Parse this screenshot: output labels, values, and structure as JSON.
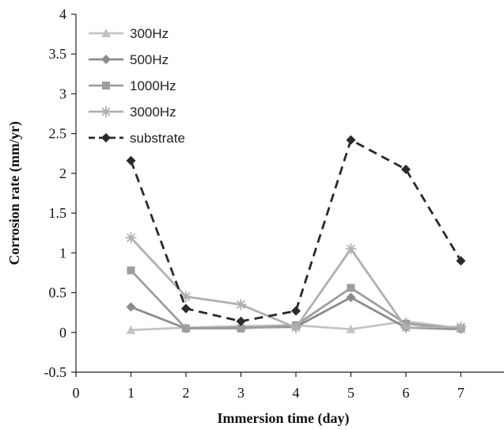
{
  "chart_data": {
    "type": "line",
    "xlabel": "Immersion time (day)",
    "ylabel": "Corrosion rate (mm/yr)",
    "xlim": [
      0,
      7.8
    ],
    "ylim": [
      -0.5,
      4
    ],
    "xticks": [
      "0",
      "1",
      "2",
      "3",
      "4",
      "5",
      "6",
      "7"
    ],
    "yticks": [
      "-0.5",
      "0",
      "0.5",
      "1",
      "1.5",
      "2",
      "2.5",
      "3",
      "3.5",
      "4"
    ],
    "grid": false,
    "legend_position": "top-left",
    "x": [
      1,
      2,
      3,
      4,
      5,
      6,
      7
    ],
    "series": [
      {
        "name": "300Hz",
        "values": [
          0.03,
          0.06,
          0.08,
          0.09,
          0.04,
          0.14,
          0.05
        ],
        "color": "#c4c4c4",
        "marker": "triangle",
        "dash": "solid"
      },
      {
        "name": "500Hz",
        "values": [
          0.32,
          0.05,
          0.06,
          0.07,
          0.44,
          0.06,
          0.04
        ],
        "color": "#8c8c8c",
        "marker": "diamond",
        "dash": "solid"
      },
      {
        "name": "1000Hz",
        "values": [
          0.78,
          0.05,
          0.05,
          0.09,
          0.56,
          0.11,
          0.05
        ],
        "color": "#9e9e9e",
        "marker": "square",
        "dash": "solid"
      },
      {
        "name": "3000Hz",
        "values": [
          1.19,
          0.45,
          0.35,
          0.06,
          1.05,
          0.06,
          0.07
        ],
        "color": "#b0b0b0",
        "marker": "star",
        "dash": "solid"
      },
      {
        "name": "substrate",
        "values": [
          2.16,
          0.3,
          0.14,
          0.27,
          2.42,
          2.05,
          0.9
        ],
        "color": "#2a2a2a",
        "marker": "diamond",
        "dash": "dashed"
      }
    ]
  }
}
